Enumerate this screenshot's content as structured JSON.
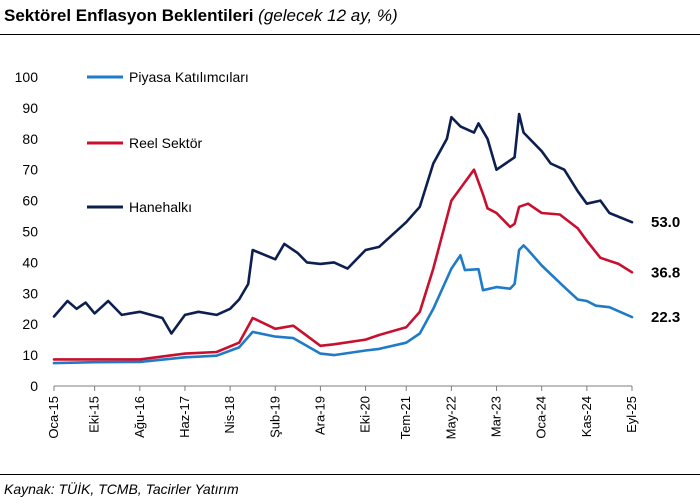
{
  "header": {
    "title": "Sektörel Enflasyon Beklentileri",
    "subtitle": "(gelecek 12 ay, %)"
  },
  "footer": {
    "source": "Kaynak: TÜİK, TCMB, Tacirler Yatırım"
  },
  "chart_data": {
    "type": "line",
    "title": "Sektörel Enflasyon Beklentileri",
    "subtitle": "(gelecek 12 ay, %)",
    "xlabel": "",
    "ylabel": "",
    "ylim": [
      0,
      100
    ],
    "yticks": [
      0,
      10,
      20,
      30,
      40,
      50,
      60,
      70,
      80,
      90,
      100
    ],
    "x_start": "2015-01",
    "x_end": "2025-09",
    "grid": false,
    "legend": "top-left",
    "xticks": [
      {
        "label": "Oca-15",
        "date": "2015-01"
      },
      {
        "label": "Eki-15",
        "date": "2015-10"
      },
      {
        "label": "Ağu-16",
        "date": "2016-08"
      },
      {
        "label": "Haz-17",
        "date": "2017-06"
      },
      {
        "label": "Nis-18",
        "date": "2018-04"
      },
      {
        "label": "Şub-19",
        "date": "2019-02"
      },
      {
        "label": "Ara-19",
        "date": "2019-12"
      },
      {
        "label": "Eki-20",
        "date": "2020-10"
      },
      {
        "label": "Tem-21",
        "date": "2021-07"
      },
      {
        "label": "May-22",
        "date": "2022-05"
      },
      {
        "label": "Mar-23",
        "date": "2023-03"
      },
      {
        "label": "Oca-24",
        "date": "2024-01"
      },
      {
        "label": "Kas-24",
        "date": "2024-11"
      },
      {
        "label": "Eyl-25",
        "date": "2025-09"
      }
    ],
    "series": [
      {
        "name": "Piyasa Katılımcıları",
        "color": "#1f7bc8",
        "end_label": "22.3",
        "points": [
          [
            "2015-01",
            7.4
          ],
          [
            "2015-10",
            7.7
          ],
          [
            "2016-08",
            7.8
          ],
          [
            "2017-06",
            9.3
          ],
          [
            "2018-01",
            9.8
          ],
          [
            "2018-06",
            12.5
          ],
          [
            "2018-09",
            17.5
          ],
          [
            "2019-02",
            16.0
          ],
          [
            "2019-06",
            15.5
          ],
          [
            "2019-12",
            10.5
          ],
          [
            "2020-03",
            10.0
          ],
          [
            "2020-10",
            11.5
          ],
          [
            "2021-01",
            12.0
          ],
          [
            "2021-07",
            14.0
          ],
          [
            "2021-10",
            17.0
          ],
          [
            "2022-01",
            25.0
          ],
          [
            "2022-05",
            38.0
          ],
          [
            "2022-07",
            42.3
          ],
          [
            "2022-08",
            37.5
          ],
          [
            "2022-11",
            37.8
          ],
          [
            "2022-12",
            31.0
          ],
          [
            "2023-03",
            32.0
          ],
          [
            "2023-06",
            31.5
          ],
          [
            "2023-07",
            33.0
          ],
          [
            "2023-08",
            44.0
          ],
          [
            "2023-09",
            45.5
          ],
          [
            "2023-10",
            44.0
          ],
          [
            "2024-01",
            39.0
          ],
          [
            "2024-06",
            32.0
          ],
          [
            "2024-09",
            28.0
          ],
          [
            "2024-11",
            27.5
          ],
          [
            "2025-01",
            26.0
          ],
          [
            "2025-04",
            25.5
          ],
          [
            "2025-09",
            22.3
          ]
        ]
      },
      {
        "name": "Reel Sektör",
        "color": "#c8102e",
        "end_label": "36.8",
        "points": [
          [
            "2015-01",
            8.6
          ],
          [
            "2015-10",
            8.6
          ],
          [
            "2016-08",
            8.6
          ],
          [
            "2017-06",
            10.5
          ],
          [
            "2018-01",
            11.0
          ],
          [
            "2018-06",
            14.0
          ],
          [
            "2018-09",
            22.0
          ],
          [
            "2019-02",
            18.5
          ],
          [
            "2019-06",
            19.5
          ],
          [
            "2019-12",
            13.0
          ],
          [
            "2020-03",
            13.5
          ],
          [
            "2020-10",
            15.0
          ],
          [
            "2021-01",
            16.5
          ],
          [
            "2021-07",
            19.0
          ],
          [
            "2021-10",
            24.0
          ],
          [
            "2022-01",
            38.0
          ],
          [
            "2022-05",
            60.0
          ],
          [
            "2022-08",
            66.0
          ],
          [
            "2022-10",
            70.0
          ],
          [
            "2022-12",
            62.0
          ],
          [
            "2023-01",
            57.5
          ],
          [
            "2023-03",
            56.0
          ],
          [
            "2023-06",
            51.5
          ],
          [
            "2023-07",
            52.5
          ],
          [
            "2023-08",
            58.0
          ],
          [
            "2023-10",
            59.0
          ],
          [
            "2024-01",
            56.0
          ],
          [
            "2024-05",
            55.5
          ],
          [
            "2024-09",
            51.0
          ],
          [
            "2024-11",
            47.0
          ],
          [
            "2025-02",
            41.5
          ],
          [
            "2025-06",
            39.5
          ],
          [
            "2025-09",
            36.8
          ]
        ]
      },
      {
        "name": "Hanehalkı",
        "color": "#0d1f4f",
        "end_label": "53.0",
        "points": [
          [
            "2015-01",
            22.5
          ],
          [
            "2015-04",
            27.5
          ],
          [
            "2015-06",
            25.0
          ],
          [
            "2015-08",
            27.0
          ],
          [
            "2015-10",
            23.5
          ],
          [
            "2016-01",
            27.5
          ],
          [
            "2016-04",
            23.0
          ],
          [
            "2016-08",
            24.0
          ],
          [
            "2017-01",
            22.0
          ],
          [
            "2017-03",
            17.0
          ],
          [
            "2017-06",
            23.0
          ],
          [
            "2017-09",
            24.0
          ],
          [
            "2018-01",
            23.0
          ],
          [
            "2018-04",
            25.0
          ],
          [
            "2018-06",
            28.0
          ],
          [
            "2018-08",
            33.0
          ],
          [
            "2018-09",
            44.0
          ],
          [
            "2019-02",
            41.0
          ],
          [
            "2019-04",
            46.0
          ],
          [
            "2019-07",
            43.0
          ],
          [
            "2019-09",
            40.0
          ],
          [
            "2019-12",
            39.5
          ],
          [
            "2020-03",
            40.0
          ],
          [
            "2020-06",
            38.0
          ],
          [
            "2020-10",
            44.0
          ],
          [
            "2021-01",
            45.0
          ],
          [
            "2021-07",
            53.0
          ],
          [
            "2021-10",
            58.0
          ],
          [
            "2022-01",
            72.0
          ],
          [
            "2022-04",
            80.0
          ],
          [
            "2022-05",
            87.0
          ],
          [
            "2022-07",
            84.0
          ],
          [
            "2022-10",
            82.0
          ],
          [
            "2022-11",
            85.0
          ],
          [
            "2023-01",
            80.0
          ],
          [
            "2023-03",
            70.0
          ],
          [
            "2023-05",
            72.0
          ],
          [
            "2023-07",
            74.0
          ],
          [
            "2023-08",
            88.0
          ],
          [
            "2023-09",
            82.0
          ],
          [
            "2024-01",
            76.0
          ],
          [
            "2024-03",
            72.0
          ],
          [
            "2024-06",
            70.0
          ],
          [
            "2024-09",
            63.0
          ],
          [
            "2024-11",
            59.0
          ],
          [
            "2025-02",
            60.0
          ],
          [
            "2025-04",
            56.0
          ],
          [
            "2025-09",
            53.0
          ]
        ]
      }
    ]
  }
}
